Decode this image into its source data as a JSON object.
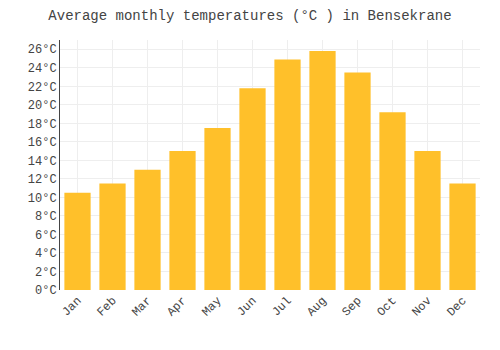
{
  "chart_data": {
    "type": "bar",
    "title": "Average monthly temperatures (°C ) in Bensekrane",
    "categories": [
      "Jan",
      "Feb",
      "Mar",
      "Apr",
      "May",
      "Jun",
      "Jul",
      "Aug",
      "Sep",
      "Oct",
      "Nov",
      "Dec"
    ],
    "values": [
      10.5,
      11.5,
      13.0,
      15.0,
      17.5,
      21.8,
      24.9,
      25.8,
      23.5,
      19.2,
      15.0,
      11.5
    ],
    "color": "#FFC02A",
    "ylim": [
      0,
      27
    ],
    "yticks": [
      {
        "value": 0,
        "label": "0°C"
      },
      {
        "value": 2,
        "label": "2°C"
      },
      {
        "value": 4,
        "label": "4°C"
      },
      {
        "value": 6,
        "label": "6°C"
      },
      {
        "value": 8,
        "label": "8°C"
      },
      {
        "value": 10,
        "label": "10°C"
      },
      {
        "value": 12,
        "label": "12°C"
      },
      {
        "value": 14,
        "label": "14°C"
      },
      {
        "value": 16,
        "label": "16°C"
      },
      {
        "value": 18,
        "label": "18°C"
      },
      {
        "value": 20,
        "label": "20°C"
      },
      {
        "value": 22,
        "label": "22°C"
      },
      {
        "value": 24,
        "label": "24°C"
      },
      {
        "value": 26,
        "label": "26°C"
      }
    ],
    "grid": true
  }
}
